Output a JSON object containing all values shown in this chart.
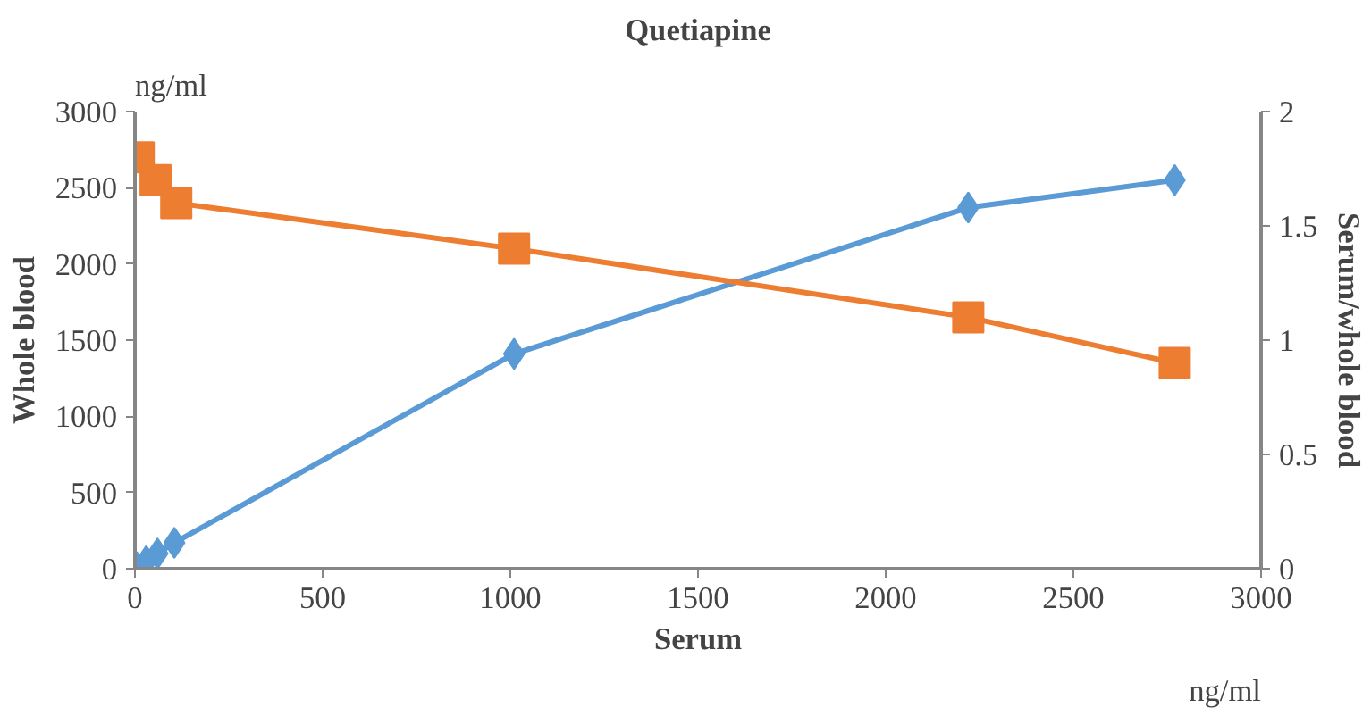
{
  "chart_data": {
    "type": "line",
    "title": "Quetiapine",
    "xlabel": "Serum",
    "ylabel": "Whole blood",
    "y2label": "Serum/whole blood",
    "annotations": [
      "ng/ml",
      "ng/ml"
    ],
    "series": [
      {
        "color": "#5b9bd5",
        "marker": "diamond",
        "x": [
          5,
          30,
          60,
          105,
          1010,
          2220,
          2770
        ],
        "values": [
          10,
          50,
          100,
          170,
          1410,
          2370,
          2550
        ]
      },
      {
        "color": "#ed7d31",
        "marker": "square",
        "axis": "y2",
        "x": [
          10,
          55,
          110,
          1010,
          2220,
          2770
        ],
        "values": [
          1.8,
          1.7,
          1.6,
          1.4,
          1.1,
          0.9
        ]
      }
    ],
    "xlim": [
      0,
      3000
    ],
    "xticks": [
      0,
      500,
      1000,
      1500,
      2000,
      2500,
      3000
    ],
    "ylim": [
      0,
      3000
    ],
    "yticks": [
      0,
      500,
      1000,
      1500,
      2000,
      2500,
      3000
    ],
    "y2lim": [
      0,
      2
    ],
    "y2ticks": [
      0,
      {
        "value": 0.5,
        "label": "0.5"
      },
      1,
      {
        "value": 1.5,
        "label": "1.5"
      },
      2
    ],
    "grid": false
  }
}
